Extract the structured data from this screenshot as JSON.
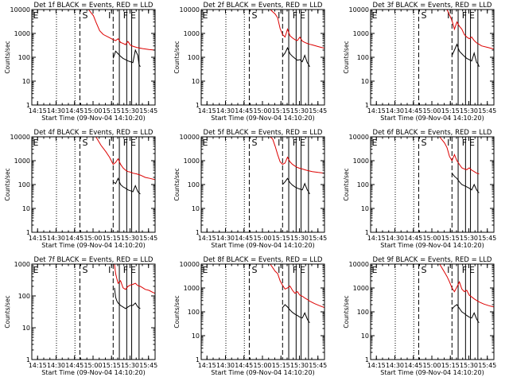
{
  "figure": {
    "xlabel": "Start Time (09-Nov-04 14:10:20)",
    "ylabel": "Counts/sec",
    "x_ticks": [
      "14:15",
      "14:30",
      "14:45",
      "15:00",
      "15:15",
      "15:30",
      "15:45"
    ],
    "y_ticks": [
      "1",
      "10",
      "100",
      "1000",
      "10000"
    ],
    "interval_letters": [
      {
        "text": "E",
        "at": "14:11"
      },
      {
        "text": "S",
        "at": "14:51"
      },
      {
        "text": "I",
        "at": "15:12"
      },
      {
        "text": "F",
        "at": "15:24"
      },
      {
        "text": "E",
        "at": "15:30"
      }
    ],
    "colors": {
      "events": "#000000",
      "lld": "#dd0000"
    }
  },
  "chart_data": [
    {
      "type": "line",
      "title": "Det 1f BLACK = Events, RED = LLD",
      "x_unit": "minutes after 14:10:20",
      "xlim": [
        0,
        100
      ],
      "ylim": [
        1,
        10000
      ],
      "y_scale": "log",
      "dotted_lines": [
        20,
        35
      ],
      "dashed_lines": [
        39,
        66
      ],
      "solid_lines": [
        71,
        77,
        81,
        87
      ],
      "series": [
        {
          "name": "LLD",
          "color": "red",
          "x": [
            46,
            50,
            52,
            55,
            58,
            62,
            66,
            68,
            70,
            72,
            74,
            76,
            78,
            80,
            82,
            85,
            90,
            95,
            100
          ],
          "y": [
            10000,
            5500,
            3000,
            1300,
            900,
            700,
            550,
            500,
            600,
            420,
            380,
            340,
            460,
            320,
            290,
            260,
            230,
            210,
            200
          ]
        },
        {
          "name": "Events",
          "color": "black",
          "x": [
            66,
            68,
            70,
            72,
            74,
            76,
            78,
            80,
            82,
            84,
            86,
            87,
            88
          ],
          "y": [
            90,
            180,
            140,
            110,
            90,
            80,
            70,
            65,
            60,
            200,
            120,
            50,
            40
          ]
        }
      ]
    },
    {
      "type": "line",
      "title": "Det 2f BLACK = Events, RED = LLD",
      "x_unit": "minutes after 14:10:20",
      "xlim": [
        0,
        100
      ],
      "ylim": [
        1,
        10000
      ],
      "y_scale": "log",
      "dotted_lines": [
        20,
        35
      ],
      "dashed_lines": [
        39,
        66
      ],
      "solid_lines": [
        71,
        77,
        81,
        87
      ],
      "series": [
        {
          "name": "LLD",
          "color": "red",
          "x": [
            56,
            60,
            62,
            64,
            66,
            68,
            70,
            72,
            74,
            76,
            78,
            80,
            82,
            84,
            86,
            88,
            90,
            95,
            100
          ],
          "y": [
            10000,
            6500,
            4500,
            1600,
            900,
            700,
            1500,
            800,
            650,
            550,
            500,
            700,
            480,
            420,
            380,
            350,
            330,
            280,
            240
          ]
        },
        {
          "name": "Events",
          "color": "black",
          "x": [
            66,
            68,
            70,
            72,
            74,
            76,
            78,
            80,
            82,
            84,
            86,
            87,
            88
          ],
          "y": [
            110,
            150,
            250,
            140,
            110,
            90,
            75,
            80,
            65,
            120,
            60,
            50,
            40
          ]
        }
      ]
    },
    {
      "type": "line",
      "title": "Det 3f BLACK = Events, RED = LLD",
      "x_unit": "minutes after 14:10:20",
      "xlim": [
        0,
        100
      ],
      "ylim": [
        1,
        10000
      ],
      "y_scale": "log",
      "dotted_lines": [
        20,
        35
      ],
      "dashed_lines": [
        39,
        66
      ],
      "solid_lines": [
        71,
        77,
        81,
        87
      ],
      "series": [
        {
          "name": "LLD",
          "color": "red",
          "x": [
            62,
            66,
            68,
            70,
            72,
            74,
            76,
            78,
            80,
            82,
            84,
            86,
            88,
            90,
            95,
            100
          ],
          "y": [
            10000,
            3500,
            1500,
            3000,
            2000,
            1500,
            900,
            700,
            600,
            700,
            500,
            400,
            350,
            300,
            260,
            220
          ]
        },
        {
          "name": "Events",
          "color": "black",
          "x": [
            66,
            68,
            70,
            72,
            74,
            76,
            78,
            80,
            82,
            84,
            86,
            87,
            88
          ],
          "y": [
            120,
            200,
            350,
            180,
            140,
            110,
            90,
            80,
            70,
            150,
            60,
            55,
            40
          ]
        }
      ]
    },
    {
      "type": "line",
      "title": "Det 4f BLACK = Events, RED = LLD",
      "x_unit": "minutes after 14:10:20",
      "xlim": [
        0,
        100
      ],
      "ylim": [
        1,
        10000
      ],
      "y_scale": "log",
      "dotted_lines": [
        20,
        35
      ],
      "dashed_lines": [
        39,
        66
      ],
      "solid_lines": [
        71,
        77,
        81,
        87
      ],
      "series": [
        {
          "name": "LLD",
          "color": "red",
          "x": [
            52,
            56,
            60,
            63,
            66,
            68,
            70,
            72,
            74,
            76,
            78,
            80,
            82,
            85,
            88,
            92,
            96,
            100
          ],
          "y": [
            10000,
            4500,
            2400,
            1400,
            700,
            850,
            1200,
            700,
            500,
            400,
            350,
            330,
            300,
            280,
            250,
            200,
            180,
            160
          ]
        },
        {
          "name": "Events",
          "color": "black",
          "x": [
            66,
            68,
            70,
            72,
            74,
            76,
            78,
            80,
            82,
            84,
            86,
            87,
            88
          ],
          "y": [
            130,
            110,
            180,
            100,
            80,
            70,
            60,
            55,
            50,
            90,
            50,
            45,
            40
          ]
        }
      ]
    },
    {
      "type": "line",
      "title": "Det 5f BLACK = Events, RED = LLD",
      "x_unit": "minutes after 14:10:20",
      "xlim": [
        0,
        100
      ],
      "ylim": [
        1,
        10000
      ],
      "y_scale": "log",
      "dotted_lines": [
        20,
        35
      ],
      "dashed_lines": [
        39,
        66
      ],
      "solid_lines": [
        71,
        77,
        81,
        87
      ],
      "series": [
        {
          "name": "LLD",
          "color": "red",
          "x": [
            56,
            58,
            60,
            62,
            64,
            66,
            68,
            70,
            72,
            74,
            76,
            78,
            80,
            82,
            85,
            90,
            95,
            100
          ],
          "y": [
            10000,
            8000,
            4000,
            1800,
            900,
            700,
            800,
            1400,
            900,
            700,
            600,
            520,
            480,
            450,
            400,
            350,
            320,
            300
          ]
        },
        {
          "name": "Events",
          "color": "black",
          "x": [
            66,
            68,
            70,
            72,
            74,
            76,
            78,
            80,
            82,
            84,
            86,
            87,
            88
          ],
          "y": [
            100,
            130,
            180,
            120,
            95,
            80,
            70,
            65,
            60,
            110,
            60,
            50,
            40
          ]
        }
      ]
    },
    {
      "type": "line",
      "title": "Det 6f BLACK = Events, RED = LLD",
      "x_unit": "minutes after 14:10:20",
      "xlim": [
        0,
        100
      ],
      "ylim": [
        1,
        10000
      ],
      "y_scale": "log",
      "dotted_lines": [
        20,
        35
      ],
      "dashed_lines": [
        39,
        66
      ],
      "solid_lines": [
        71,
        77,
        81,
        87
      ],
      "series": [
        {
          "name": "LLD",
          "color": "red",
          "x": [
            56,
            60,
            62,
            64,
            66,
            68,
            70,
            72,
            74,
            76,
            78,
            80,
            82,
            84,
            86,
            88
          ],
          "y": [
            10000,
            5500,
            3500,
            1500,
            1000,
            1800,
            1000,
            700,
            500,
            450,
            420,
            500,
            400,
            350,
            300,
            280
          ]
        },
        {
          "name": "Events",
          "color": "black",
          "x": [
            66,
            68,
            70,
            72,
            74,
            76,
            78,
            80,
            82,
            84,
            86,
            87,
            88
          ],
          "y": [
            300,
            220,
            180,
            130,
            100,
            90,
            80,
            70,
            60,
            100,
            60,
            50,
            45
          ]
        }
      ]
    },
    {
      "type": "line",
      "title": "Det 7f BLACK = Events, RED = LLD",
      "x_unit": "minutes after 14:10:20",
      "xlim": [
        0,
        100
      ],
      "ylim": [
        1,
        1000
      ],
      "y_scale": "log",
      "dotted_lines": [
        20,
        35
      ],
      "dashed_lines": [
        39,
        66
      ],
      "solid_lines": [
        71,
        77,
        81,
        87
      ],
      "series": [
        {
          "name": "LLD",
          "color": "red",
          "x": [
            67,
            68,
            69,
            70,
            72,
            74,
            76,
            78,
            80,
            82,
            84,
            86,
            88,
            90,
            92,
            95,
            98,
            100
          ],
          "y": [
            1000,
            500,
            350,
            250,
            300,
            180,
            160,
            200,
            220,
            230,
            250,
            210,
            200,
            180,
            160,
            150,
            130,
            120
          ]
        },
        {
          "name": "Events",
          "color": "black",
          "x": [
            67,
            68,
            69,
            70,
            72,
            74,
            76,
            78,
            80,
            82,
            84,
            86,
            88
          ],
          "y": [
            180,
            90,
            70,
            60,
            50,
            45,
            40,
            45,
            50,
            50,
            60,
            45,
            40
          ]
        }
      ]
    },
    {
      "type": "line",
      "title": "Det 8f BLACK = Events, RED = LLD",
      "x_unit": "minutes after 14:10:20",
      "xlim": [
        0,
        100
      ],
      "ylim": [
        1,
        10000
      ],
      "y_scale": "log",
      "dotted_lines": [
        20,
        35
      ],
      "dashed_lines": [
        39,
        66
      ],
      "solid_lines": [
        71,
        77,
        81,
        87
      ],
      "series": [
        {
          "name": "LLD",
          "color": "red",
          "x": [
            56,
            60,
            62,
            64,
            66,
            68,
            70,
            72,
            74,
            76,
            78,
            80,
            82,
            84,
            86,
            88,
            92,
            96,
            100
          ],
          "y": [
            10000,
            5000,
            4000,
            2000,
            1300,
            900,
            1000,
            1200,
            800,
            600,
            700,
            500,
            450,
            380,
            330,
            280,
            220,
            180,
            150
          ]
        },
        {
          "name": "Events",
          "color": "black",
          "x": [
            66,
            68,
            70,
            72,
            74,
            76,
            78,
            80,
            82,
            84,
            86,
            87,
            88
          ],
          "y": [
            150,
            200,
            160,
            120,
            95,
            80,
            70,
            60,
            55,
            90,
            50,
            40,
            35
          ]
        }
      ]
    },
    {
      "type": "line",
      "title": "Det 9f BLACK = Events, RED = LLD",
      "x_unit": "minutes after 14:10:20",
      "xlim": [
        0,
        100
      ],
      "ylim": [
        1,
        10000
      ],
      "y_scale": "log",
      "dotted_lines": [
        20,
        35
      ],
      "dashed_lines": [
        39,
        66
      ],
      "solid_lines": [
        71,
        77,
        81,
        87
      ],
      "series": [
        {
          "name": "LLD",
          "color": "red",
          "x": [
            56,
            60,
            62,
            64,
            66,
            68,
            70,
            72,
            74,
            76,
            78,
            80,
            82,
            84,
            86,
            88,
            92,
            96,
            100
          ],
          "y": [
            10000,
            4500,
            3000,
            1800,
            1000,
            700,
            1100,
            1800,
            900,
            700,
            800,
            500,
            420,
            350,
            300,
            260,
            210,
            180,
            160
          ]
        },
        {
          "name": "Events",
          "color": "black",
          "x": [
            66,
            68,
            70,
            72,
            74,
            76,
            78,
            80,
            82,
            84,
            86,
            87,
            88
          ],
          "y": [
            130,
            170,
            200,
            140,
            100,
            85,
            70,
            60,
            55,
            90,
            50,
            40,
            35
          ]
        }
      ]
    }
  ]
}
